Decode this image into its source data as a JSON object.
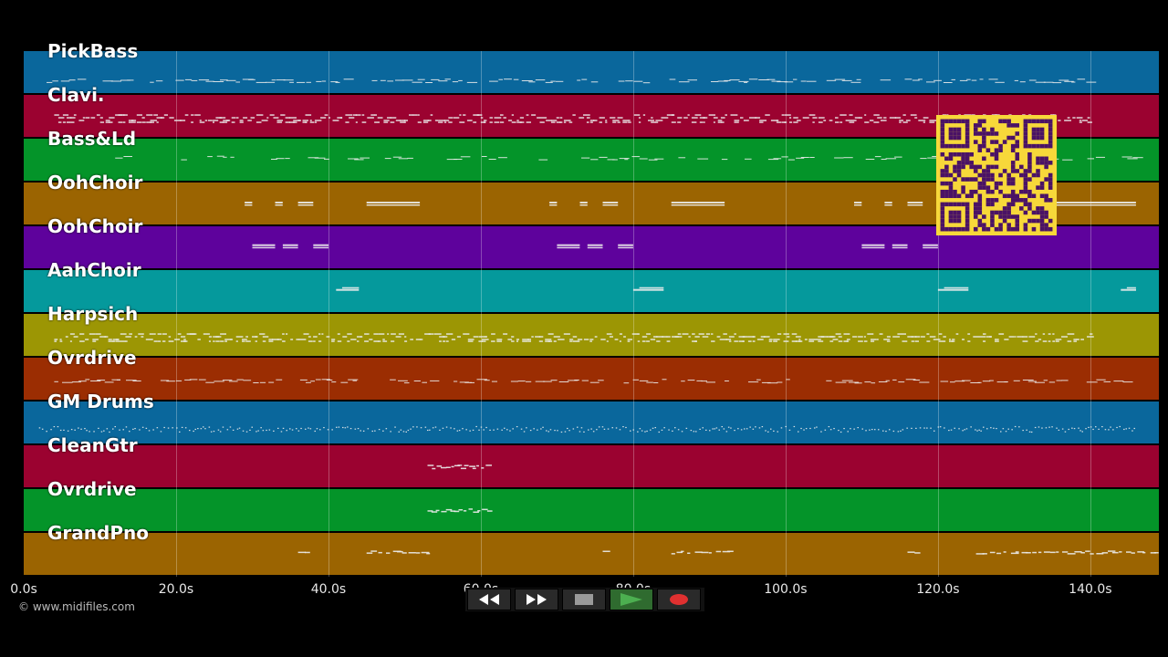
{
  "tracks": [
    {
      "name": "PickBass",
      "color": "#0a679c"
    },
    {
      "name": "Clavi.",
      "color": "#9b0230"
    },
    {
      "name": "Bass&Ld",
      "color": "#049429"
    },
    {
      "name": "OohChoir",
      "color": "#9b6401"
    },
    {
      "name": "OohChoir",
      "color": "#5e029c"
    },
    {
      "name": "AahChoir",
      "color": "#05999c"
    },
    {
      "name": "Harpsich",
      "color": "#9c9604"
    },
    {
      "name": "Ovrdrive",
      "color": "#9b2d02"
    },
    {
      "name": "GM Drums",
      "color": "#0a679c"
    },
    {
      "name": "CleanGtr",
      "color": "#9b0230"
    },
    {
      "name": "Ovrdrive",
      "color": "#049429"
    },
    {
      "name": "GrandPno",
      "color": "#9b6401"
    }
  ],
  "timeline": {
    "ticks": [
      "0.0s",
      "20.0s",
      "40.0s",
      "60.0s",
      "80.0s",
      "100.0s",
      "120.0s",
      "140.0s"
    ],
    "max_seconds": 149
  },
  "copyright": "© www.midifiles.com",
  "transport": {
    "rewind_icon": "rewind-icon",
    "fast_forward_icon": "fast-forward-icon",
    "stop_icon": "stop-icon",
    "play_icon": "play-icon",
    "record_icon": "record-icon",
    "play_color": "#4caf50",
    "record_color": "#e03030"
  },
  "qr_code": {
    "icon": "qr-code-icon",
    "background": "#f7d83a",
    "foreground": "#4a1266"
  }
}
